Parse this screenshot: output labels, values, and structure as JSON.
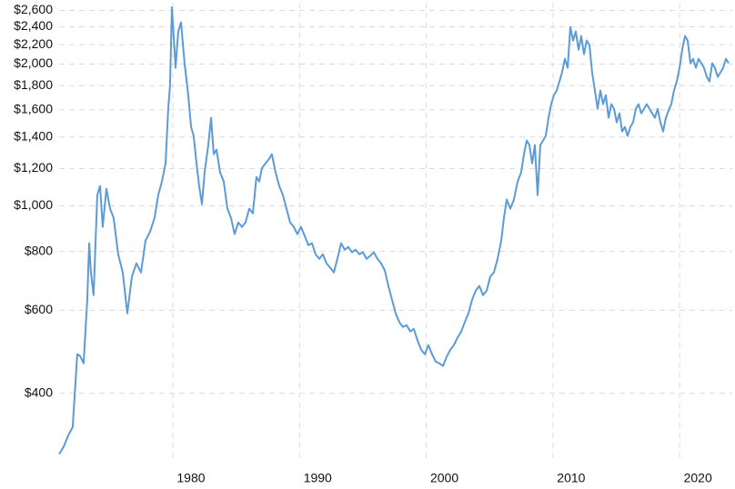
{
  "chart_data": {
    "type": "line",
    "log_y": true,
    "grid": true,
    "xlim": [
      1971.03,
      2024.15
    ],
    "ylim": [
      290,
      2700
    ],
    "xticks": [
      1980,
      1990,
      2000,
      2010,
      2020
    ],
    "yticks": [
      {
        "value": 400,
        "label": "$400"
      },
      {
        "value": 600,
        "label": "$600"
      },
      {
        "value": 800,
        "label": "$800"
      },
      {
        "value": 1000,
        "label": "$1,000"
      },
      {
        "value": 1200,
        "label": "$1,200"
      },
      {
        "value": 1400,
        "label": "$1,400"
      },
      {
        "value": 1600,
        "label": "$1,600"
      },
      {
        "value": 1800,
        "label": "$1,800"
      },
      {
        "value": 2000,
        "label": "$2,000"
      },
      {
        "value": 2200,
        "label": "$2,200"
      },
      {
        "value": 2400,
        "label": "$2,400"
      },
      {
        "value": 2600,
        "label": "$2,600"
      }
    ],
    "x": [
      1971.03,
      1971.39,
      1971.74,
      1972.1,
      1972.46,
      1972.68,
      1972.96,
      1973.25,
      1973.4,
      1973.54,
      1973.75,
      1974.04,
      1974.26,
      1974.47,
      1974.76,
      1975.05,
      1975.33,
      1975.69,
      1976.05,
      1976.41,
      1976.77,
      1977.13,
      1977.49,
      1977.85,
      1978.21,
      1978.56,
      1978.85,
      1979.14,
      1979.43,
      1979.64,
      1979.78,
      1979.93,
      1980.07,
      1980.22,
      1980.43,
      1980.65,
      1980.93,
      1981.22,
      1981.44,
      1981.65,
      1981.87,
      1982.08,
      1982.3,
      1982.51,
      1982.8,
      1983.02,
      1983.23,
      1983.45,
      1983.73,
      1984.02,
      1984.31,
      1984.59,
      1984.88,
      1985.17,
      1985.46,
      1985.74,
      1986.03,
      1986.32,
      1986.6,
      1986.82,
      1987.04,
      1987.32,
      1987.61,
      1987.82,
      1988.11,
      1988.4,
      1988.69,
      1988.97,
      1989.26,
      1989.55,
      1989.83,
      1990.12,
      1990.41,
      1990.7,
      1990.98,
      1991.27,
      1991.56,
      1991.84,
      1992.13,
      1992.42,
      1992.71,
      1992.99,
      1993.28,
      1993.57,
      1993.85,
      1994.14,
      1994.43,
      1994.72,
      1995.0,
      1995.29,
      1995.58,
      1995.86,
      1996.15,
      1996.44,
      1996.73,
      1997.01,
      1997.3,
      1997.59,
      1997.88,
      1998.16,
      1998.45,
      1998.74,
      1999.02,
      1999.31,
      1999.6,
      1999.89,
      2000.17,
      2000.46,
      2000.75,
      2001.03,
      2001.32,
      2001.61,
      2001.9,
      2002.18,
      2002.47,
      2002.76,
      2003.04,
      2003.33,
      2003.62,
      2003.91,
      2004.19,
      2004.48,
      2004.77,
      2005.05,
      2005.34,
      2005.63,
      2005.92,
      2006.13,
      2006.35,
      2006.63,
      2006.92,
      2007.21,
      2007.49,
      2007.71,
      2007.93,
      2008.14,
      2008.36,
      2008.57,
      2008.79,
      2009.0,
      2009.22,
      2009.43,
      2009.65,
      2009.86,
      2010.08,
      2010.29,
      2010.51,
      2010.72,
      2010.94,
      2011.16,
      2011.37,
      2011.59,
      2011.8,
      2012.02,
      2012.23,
      2012.45,
      2012.66,
      2012.88,
      2013.09,
      2013.31,
      2013.52,
      2013.74,
      2013.96,
      2014.17,
      2014.39,
      2014.6,
      2014.82,
      2015.03,
      2015.25,
      2015.46,
      2015.68,
      2015.89,
      2016.11,
      2016.32,
      2016.54,
      2016.75,
      2016.97,
      2017.19,
      2017.4,
      2017.62,
      2017.83,
      2018.05,
      2018.26,
      2018.48,
      2018.69,
      2018.91,
      2019.12,
      2019.34,
      2019.55,
      2019.77,
      2019.99,
      2020.2,
      2020.42,
      2020.63,
      2020.85,
      2021.06,
      2021.28,
      2021.49,
      2021.71,
      2021.92,
      2022.14,
      2022.35,
      2022.57,
      2022.78,
      2023.0,
      2023.22,
      2023.43,
      2023.65,
      2023.86
    ],
    "series": [
      {
        "color": "#5b9bd8",
        "values": [
          297,
          308,
          325,
          339,
          484,
          480,
          463,
          632,
          833,
          722,
          646,
          1054,
          1102,
          902,
          1087,
          986,
          943,
          789,
          722,
          591,
          707,
          755,
          722,
          844,
          882,
          943,
          1054,
          1126,
          1231,
          1607,
          1797,
          2640,
          2294,
          1964,
          2346,
          2452,
          2008,
          1718,
          1471,
          1407,
          1231,
          1102,
          1008,
          1178,
          1346,
          1538,
          1287,
          1316,
          1178,
          1126,
          986,
          943,
          871,
          922,
          902,
          922,
          986,
          964,
          1152,
          1126,
          1204,
          1231,
          1259,
          1287,
          1178,
          1102,
          1054,
          986,
          922,
          902,
          871,
          902,
          863,
          825,
          833,
          789,
          772,
          789,
          755,
          739,
          722,
          772,
          833,
          807,
          818,
          797,
          807,
          789,
          797,
          772,
          783,
          797,
          772,
          755,
          729,
          676,
          632,
          591,
          566,
          553,
          558,
          541,
          548,
          518,
          495,
          484,
          506,
          484,
          467,
          463,
          457,
          478,
          495,
          506,
          525,
          541,
          566,
          591,
          632,
          661,
          676,
          646,
          661,
          707,
          722,
          772,
          844,
          943,
          1031,
          986,
          1031,
          1126,
          1178,
          1287,
          1376,
          1346,
          1231,
          1346,
          1054,
          1346,
          1376,
          1407,
          1538,
          1644,
          1718,
          1757,
          1837,
          1921,
          2053,
          1964,
          2398,
          2244,
          2346,
          2146,
          2294,
          2099,
          2244,
          2195,
          1921,
          1757,
          1607,
          1757,
          1644,
          1718,
          1538,
          1644,
          1607,
          1504,
          1572,
          1438,
          1471,
          1407,
          1471,
          1504,
          1607,
          1644,
          1572,
          1607,
          1644,
          1607,
          1572,
          1538,
          1607,
          1504,
          1438,
          1538,
          1594,
          1644,
          1757,
          1837,
          1964,
          2146,
          2294,
          2244,
          2008,
          2053,
          1964,
          2053,
          2008,
          1964,
          1879,
          1837,
          2008,
          1964,
          1879,
          1921,
          1964,
          2053,
          2008
        ]
      }
    ]
  }
}
